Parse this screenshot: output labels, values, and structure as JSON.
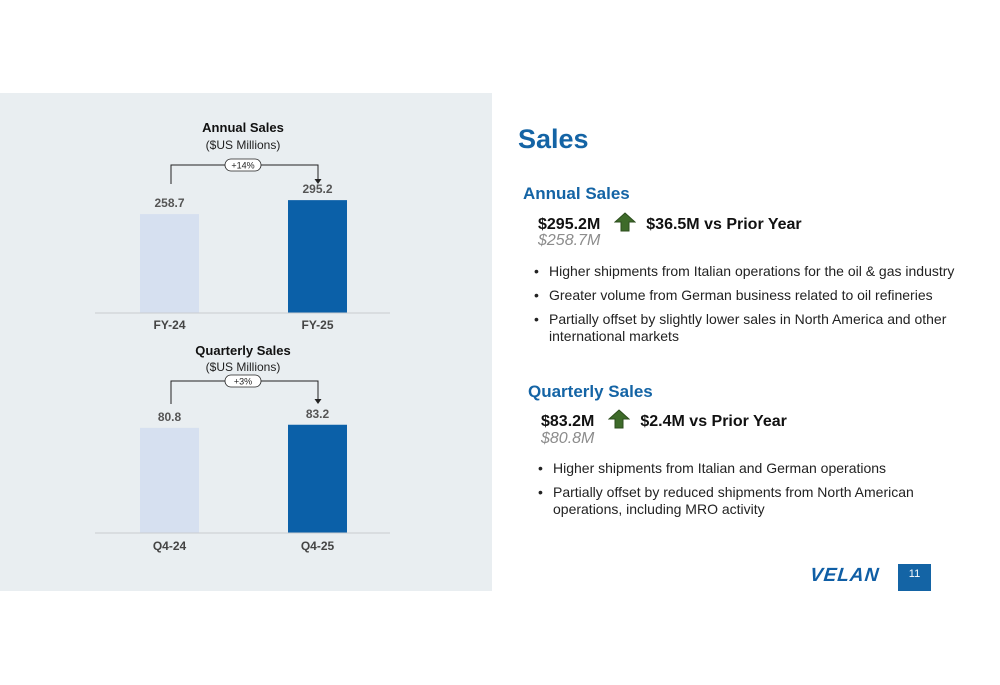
{
  "chart_data": [
    {
      "type": "bar",
      "title": "Annual Sales",
      "subtitle": "($US Millions)",
      "categories": [
        "FY-24",
        "FY-25"
      ],
      "values": [
        258.7,
        295.2
      ],
      "value_labels": [
        "258.7",
        "295.2"
      ],
      "change_label": "+14%",
      "colors": [
        "#d6e0f0",
        "#0b60a8"
      ],
      "ylim": [
        0,
        340
      ]
    },
    {
      "type": "bar",
      "title": "Quarterly Sales",
      "subtitle": "($US Millions)",
      "categories": [
        "Q4-24",
        "Q4-25"
      ],
      "values": [
        80.8,
        83.2
      ],
      "value_labels": [
        "80.8",
        "83.2"
      ],
      "change_label": "+3%",
      "colors": [
        "#d6e0f0",
        "#0b60a8"
      ],
      "ylim": [
        0,
        93
      ]
    }
  ],
  "slide": {
    "title": "Sales",
    "page_number": "11",
    "logo": "VELAN"
  },
  "annual": {
    "heading": "Annual Sales",
    "value": "$295.2M",
    "change": "$36.5M vs Prior Year",
    "prior": "$258.7M",
    "bullets": [
      "Higher shipments from Italian operations for the oil & gas industry",
      "Greater volume from German business related to oil refineries",
      "Partially offset by slightly lower sales in North America and other international markets"
    ]
  },
  "quarterly": {
    "heading": "Quarterly Sales",
    "value": "$83.2M",
    "change": "$2.4M vs Prior Year",
    "prior": "$80.8M",
    "bullets": [
      "Higher shipments from Italian and German operations",
      "Partially offset by reduced shipments from North American operations, including MRO activity"
    ]
  },
  "colors": {
    "accent": "#1464a5",
    "arrow": "#3e6b2a",
    "prior_text": "#8c8c8c"
  }
}
